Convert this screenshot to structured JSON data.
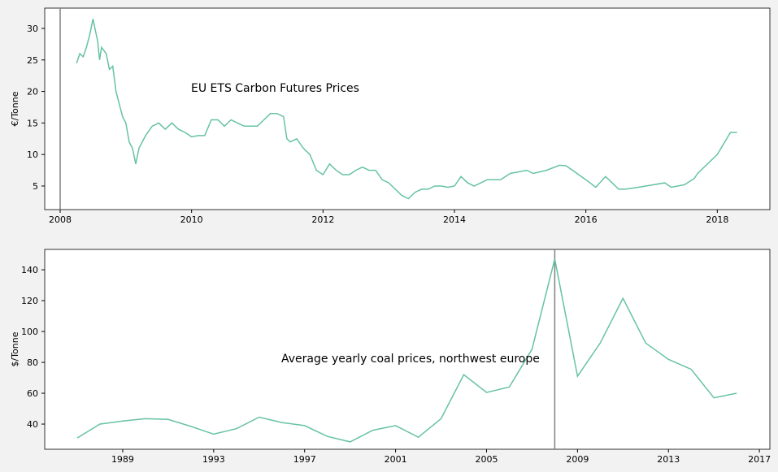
{
  "chart_data": [
    {
      "type": "line",
      "annotation": "EU ETS Carbon Futures Prices",
      "ylabel": "€/Tonne",
      "x": [
        2008.25,
        2008.3,
        2008.35,
        2008.4,
        2008.45,
        2008.5,
        2008.53,
        2008.57,
        2008.6,
        2008.63,
        2008.7,
        2008.75,
        2008.8,
        2008.85,
        2008.9,
        2008.95,
        2009.0,
        2009.05,
        2009.1,
        2009.15,
        2009.2,
        2009.3,
        2009.4,
        2009.5,
        2009.6,
        2009.7,
        2009.8,
        2009.9,
        2010.0,
        2010.1,
        2010.2,
        2010.3,
        2010.4,
        2010.5,
        2010.6,
        2010.7,
        2010.8,
        2010.9,
        2011.0,
        2011.1,
        2011.2,
        2011.3,
        2011.4,
        2011.45,
        2011.5,
        2011.6,
        2011.7,
        2011.8,
        2011.9,
        2012.0,
        2012.1,
        2012.2,
        2012.3,
        2012.4,
        2012.5,
        2012.6,
        2012.7,
        2012.8,
        2012.9,
        2013.0,
        2013.1,
        2013.2,
        2013.3,
        2013.4,
        2013.5,
        2013.6,
        2013.7,
        2013.8,
        2013.9,
        2014.0,
        2014.1,
        2014.2,
        2014.3,
        2014.5,
        2014.7,
        2014.85,
        2015.1,
        2015.2,
        2015.4,
        2015.6,
        2015.7,
        2016.0,
        2016.15,
        2016.3,
        2016.4,
        2016.5,
        2016.6,
        2016.8,
        2017.2,
        2017.3,
        2017.5,
        2017.65,
        2017.7,
        2018.0,
        2018.2,
        2018.3
      ],
      "series": [
        {
          "color": "#66c2a5",
          "values": [
            24.5,
            26,
            25.5,
            27,
            29,
            31.5,
            30,
            28,
            25,
            27,
            26,
            23.5,
            24,
            20,
            18,
            16,
            15,
            12,
            11,
            8.5,
            11,
            13,
            14.5,
            15,
            14,
            15,
            14,
            13.5,
            12.8,
            13,
            13,
            15.5,
            15.5,
            14.5,
            15.5,
            15,
            14.5,
            14.5,
            14.5,
            15.5,
            16.5,
            16.5,
            16,
            12.5,
            12,
            12.5,
            11,
            10,
            7.5,
            6.8,
            8.5,
            7.5,
            6.8,
            6.8,
            7.5,
            8,
            7.5,
            7.5,
            6,
            5.5,
            4.5,
            3.5,
            3,
            4,
            4.5,
            4.5,
            5,
            5,
            4.8,
            5,
            6.5,
            5.5,
            5,
            6,
            6,
            7,
            7.5,
            7,
            7.5,
            8.3,
            8.2,
            6,
            4.8,
            6.5,
            5.5,
            4.5,
            4.5,
            4.8,
            5.5,
            4.8,
            5.2,
            6.2,
            7,
            10,
            13.5,
            13.5
          ]
        }
      ],
      "xlim": [
        2007.765,
        2018.8
      ],
      "xticks": [
        2008,
        2010,
        2012,
        2014,
        2016,
        2018
      ],
      "ylim": [
        1.26,
        33.22
      ],
      "yticks": [
        5,
        10,
        15,
        20,
        25,
        30
      ],
      "vline": 2008
    },
    {
      "type": "line",
      "annotation": "Average yearly coal prices, northwest europe",
      "ylabel": "$/Tonne",
      "x": [
        1987,
        1988,
        1989,
        1990,
        1991,
        1992,
        1993,
        1994,
        1995,
        1996,
        1997,
        1998,
        1999,
        2000,
        2001,
        2002,
        2003,
        2004,
        2005,
        2006,
        2007,
        2008,
        2009,
        2010,
        2011,
        2012,
        2013,
        2014,
        2015,
        2016
      ],
      "series": [
        {
          "color": "#66c2a5",
          "values": [
            31,
            40,
            42,
            43.5,
            43,
            38.5,
            33.5,
            37,
            44.5,
            41,
            39,
            32,
            28.5,
            36,
            39,
            31.5,
            43.5,
            72,
            60.5,
            64,
            88.5,
            147,
            71,
            92.5,
            121.5,
            92.5,
            82,
            75.5,
            57,
            60
          ]
        }
      ],
      "xlim": [
        1985.57,
        2017.46
      ],
      "xticks": [
        1989,
        1993,
        1997,
        2001,
        2005,
        2009,
        2013,
        2017
      ],
      "ylim": [
        23.7,
        153.2
      ],
      "yticks": [
        40,
        60,
        80,
        100,
        120,
        140
      ],
      "vline": 2008
    }
  ]
}
